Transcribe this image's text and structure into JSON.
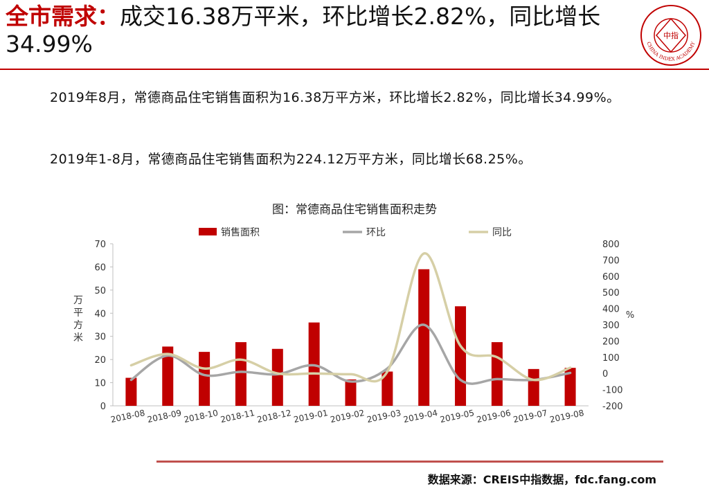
{
  "header": {
    "title_highlight": "全市需求：",
    "title_rest": "成交16.38万平米，环比增长2.82%，同比增长34.99%",
    "logo_text": "中指",
    "logo_ring_text": "CHINA INDEX ACADEMY"
  },
  "body": {
    "para1": "2019年8月，常德商品住宅销售面积为16.38万平方米，环比增长2.82%，同比增长34.99%。",
    "para2": "2019年1-8月，常德商品住宅销售面积为224.12万平方米，同比增长68.25%。"
  },
  "footer": {
    "source": "数据来源：CREIS中指数据，fdc.fang.com"
  },
  "colors": {
    "accent": "#c00000",
    "bar": "#c00000",
    "mom_line": "#a6a6a6",
    "yoy_line": "#d6cfa6"
  },
  "chart_data": {
    "type": "bar",
    "title": "图：常德商品住宅销售面积走势",
    "ylabel_left": "万平方米",
    "ylabel_right": "%",
    "categories": [
      "2018-08",
      "2018-09",
      "2018-10",
      "2018-11",
      "2018-12",
      "2019-01",
      "2019-02",
      "2019-03",
      "2019-04",
      "2019-05",
      "2019-06",
      "2019-07",
      "2019-08"
    ],
    "series": [
      {
        "name": "销售面积",
        "kind": "bar",
        "axis": "left",
        "values": [
          12.1,
          25.6,
          23.3,
          27.5,
          24.6,
          36.0,
          11.4,
          14.8,
          59.0,
          43.0,
          27.5,
          15.9,
          16.4
        ]
      },
      {
        "name": "环比",
        "kind": "line",
        "axis": "right",
        "values": [
          -40,
          110,
          -10,
          10,
          -5,
          50,
          -50,
          30,
          300,
          -40,
          -35,
          -40,
          3
        ]
      },
      {
        "name": "同比",
        "kind": "line",
        "axis": "right",
        "values": [
          50,
          120,
          30,
          85,
          0,
          0,
          -5,
          10,
          740,
          170,
          100,
          -40,
          35
        ]
      }
    ],
    "ylim_left": [
      0,
      70
    ],
    "ylim_right": [
      -200,
      800
    ],
    "yticks_left": [
      "0",
      "10",
      "20",
      "30",
      "40",
      "50",
      "60",
      "70"
    ],
    "yticks_right": [
      "-200",
      "-100",
      "0",
      "100",
      "200",
      "300",
      "400",
      "500",
      "600",
      "700",
      "800"
    ],
    "legend_position": "top",
    "grid": false
  }
}
